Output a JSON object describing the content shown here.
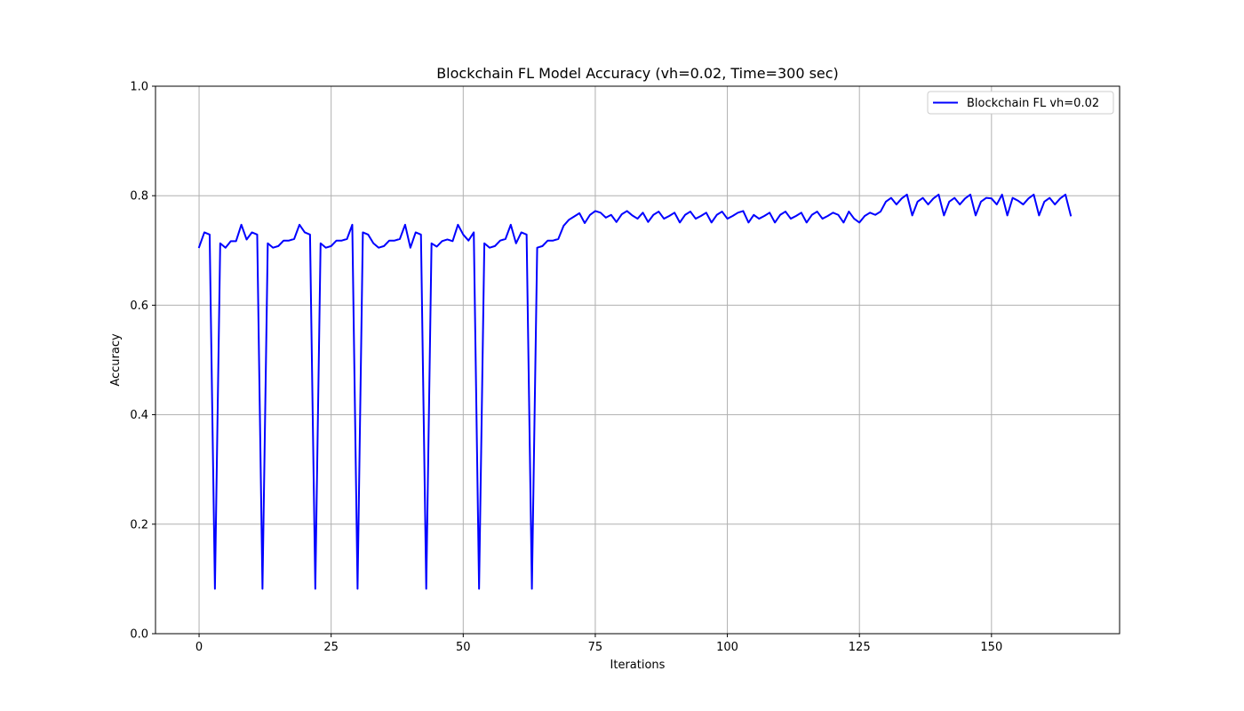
{
  "chart_data": {
    "type": "line",
    "title": "Blockchain FL Model Accuracy (vh=0.02, Time=300 sec)",
    "xlabel": "Iterations",
    "ylabel": "Accuracy",
    "xlim": [
      -8.25,
      174.25
    ],
    "ylim": [
      0.0,
      1.0
    ],
    "xticks": [
      0,
      25,
      50,
      75,
      100,
      125,
      150
    ],
    "yticks": [
      0.0,
      0.2,
      0.4,
      0.6,
      0.8,
      1.0
    ],
    "xtick_labels": [
      "0",
      "25",
      "50",
      "75",
      "100",
      "125",
      "150"
    ],
    "ytick_labels": [
      "0.0",
      "0.2",
      "0.4",
      "0.6",
      "0.8",
      "1.0"
    ],
    "grid": true,
    "legend_position": "upper-right",
    "series": [
      {
        "name": "Blockchain FL vh=0.02",
        "color": "#0000ff",
        "x": [
          0,
          1,
          2,
          3,
          4,
          5,
          6,
          7,
          8,
          9,
          10,
          11,
          12,
          13,
          14,
          15,
          16,
          17,
          18,
          19,
          20,
          21,
          22,
          23,
          24,
          25,
          26,
          27,
          28,
          29,
          30,
          31,
          32,
          33,
          34,
          35,
          36,
          37,
          38,
          39,
          40,
          41,
          42,
          43,
          44,
          45,
          46,
          47,
          48,
          49,
          50,
          51,
          52,
          53,
          54,
          55,
          56,
          57,
          58,
          59,
          60,
          61,
          62,
          63,
          64,
          65,
          66,
          67,
          68,
          69,
          70,
          71,
          72,
          73,
          74,
          75,
          76,
          77,
          78,
          79,
          80,
          81,
          82,
          83,
          84,
          85,
          86,
          87,
          88,
          89,
          90,
          91,
          92,
          93,
          94,
          95,
          96,
          97,
          98,
          99,
          100,
          101,
          102,
          103,
          104,
          105,
          106,
          107,
          108,
          109,
          110,
          111,
          112,
          113,
          114,
          115,
          116,
          117,
          118,
          119,
          120,
          121,
          122,
          123,
          124,
          125,
          126,
          127,
          128,
          129,
          130,
          131,
          132,
          133,
          134,
          135,
          136,
          137,
          138,
          139,
          140,
          141,
          142,
          143,
          144,
          145,
          146,
          147,
          148,
          149,
          150,
          151,
          152,
          153,
          154,
          155,
          156,
          157,
          158,
          159,
          160,
          161,
          162,
          163,
          164,
          165
        ],
        "values": [
          0.706,
          0.733,
          0.729,
          0.082,
          0.713,
          0.705,
          0.717,
          0.717,
          0.747,
          0.72,
          0.733,
          0.729,
          0.082,
          0.713,
          0.705,
          0.708,
          0.718,
          0.718,
          0.721,
          0.747,
          0.733,
          0.729,
          0.082,
          0.713,
          0.705,
          0.708,
          0.718,
          0.718,
          0.721,
          0.747,
          0.082,
          0.733,
          0.729,
          0.713,
          0.705,
          0.708,
          0.718,
          0.718,
          0.721,
          0.747,
          0.705,
          0.733,
          0.729,
          0.082,
          0.713,
          0.707,
          0.717,
          0.72,
          0.717,
          0.747,
          0.729,
          0.718,
          0.733,
          0.082,
          0.713,
          0.705,
          0.708,
          0.718,
          0.721,
          0.747,
          0.713,
          0.733,
          0.729,
          0.082,
          0.705,
          0.708,
          0.718,
          0.718,
          0.721,
          0.745,
          0.756,
          0.762,
          0.768,
          0.75,
          0.765,
          0.772,
          0.769,
          0.76,
          0.765,
          0.752,
          0.766,
          0.772,
          0.764,
          0.758,
          0.769,
          0.752,
          0.765,
          0.771,
          0.758,
          0.763,
          0.769,
          0.751,
          0.765,
          0.771,
          0.758,
          0.763,
          0.769,
          0.751,
          0.765,
          0.771,
          0.758,
          0.763,
          0.769,
          0.772,
          0.751,
          0.765,
          0.758,
          0.763,
          0.769,
          0.751,
          0.765,
          0.771,
          0.758,
          0.763,
          0.769,
          0.751,
          0.765,
          0.771,
          0.758,
          0.763,
          0.769,
          0.765,
          0.751,
          0.771,
          0.758,
          0.751,
          0.763,
          0.769,
          0.765,
          0.771,
          0.789,
          0.796,
          0.784,
          0.795,
          0.802,
          0.764,
          0.789,
          0.796,
          0.784,
          0.795,
          0.802,
          0.764,
          0.789,
          0.796,
          0.784,
          0.795,
          0.802,
          0.764,
          0.789,
          0.796,
          0.795,
          0.784,
          0.802,
          0.764,
          0.796,
          0.791,
          0.784,
          0.795,
          0.802,
          0.764,
          0.789,
          0.796,
          0.784,
          0.795,
          0.802,
          0.764
        ]
      }
    ]
  }
}
